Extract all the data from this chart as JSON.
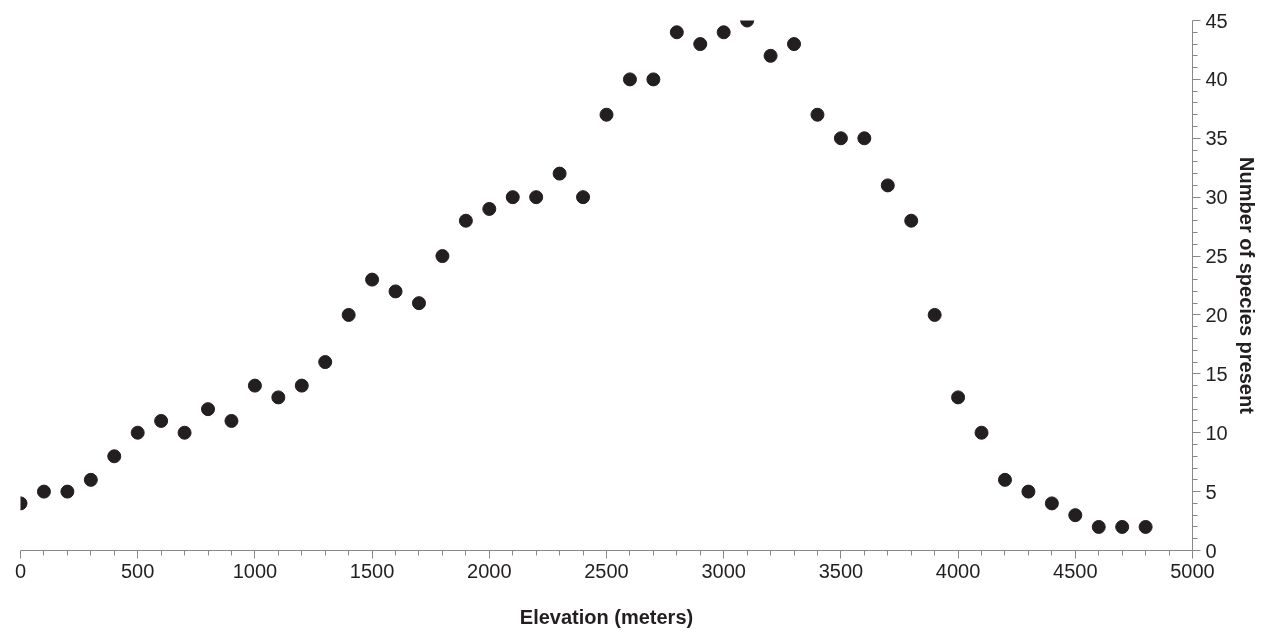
{
  "chart_data": {
    "type": "scatter",
    "xlabel": "Elevation (meters)",
    "ylabel": "Number of species present",
    "x": [
      0,
      100,
      200,
      300,
      400,
      500,
      600,
      700,
      800,
      900,
      1000,
      1100,
      1200,
      1300,
      1400,
      1500,
      1600,
      1700,
      1800,
      1900,
      2000,
      2100,
      2200,
      2300,
      2400,
      2500,
      2600,
      2700,
      2800,
      2900,
      3000,
      3100,
      3200,
      3300,
      3400,
      3500,
      3600,
      3700,
      3800,
      3900,
      4000,
      4100,
      4200,
      4300,
      4400,
      4500,
      4600,
      4700,
      4800
    ],
    "series": [
      {
        "color": "#231f20",
        "values": [
          4,
          5,
          5,
          6,
          8,
          10,
          11,
          10,
          12,
          11,
          14,
          13,
          14,
          16,
          20,
          23,
          22,
          21,
          25,
          28,
          29,
          30,
          30,
          32,
          30,
          37,
          40,
          40,
          44,
          43,
          44,
          45,
          42,
          43,
          37,
          35,
          35,
          31,
          28,
          20,
          13,
          10,
          6,
          5,
          4,
          3,
          2,
          2,
          2
        ]
      }
    ],
    "xlim": [
      0,
      5000
    ],
    "xticks": [
      0,
      500,
      1000,
      1500,
      2000,
      2500,
      3000,
      3500,
      4000,
      4500,
      5000
    ],
    "ylim": [
      0,
      45
    ],
    "yticks": [
      0,
      5,
      10,
      15,
      20,
      25,
      30,
      35,
      40,
      45
    ],
    "grid": false,
    "marker": "circle"
  }
}
